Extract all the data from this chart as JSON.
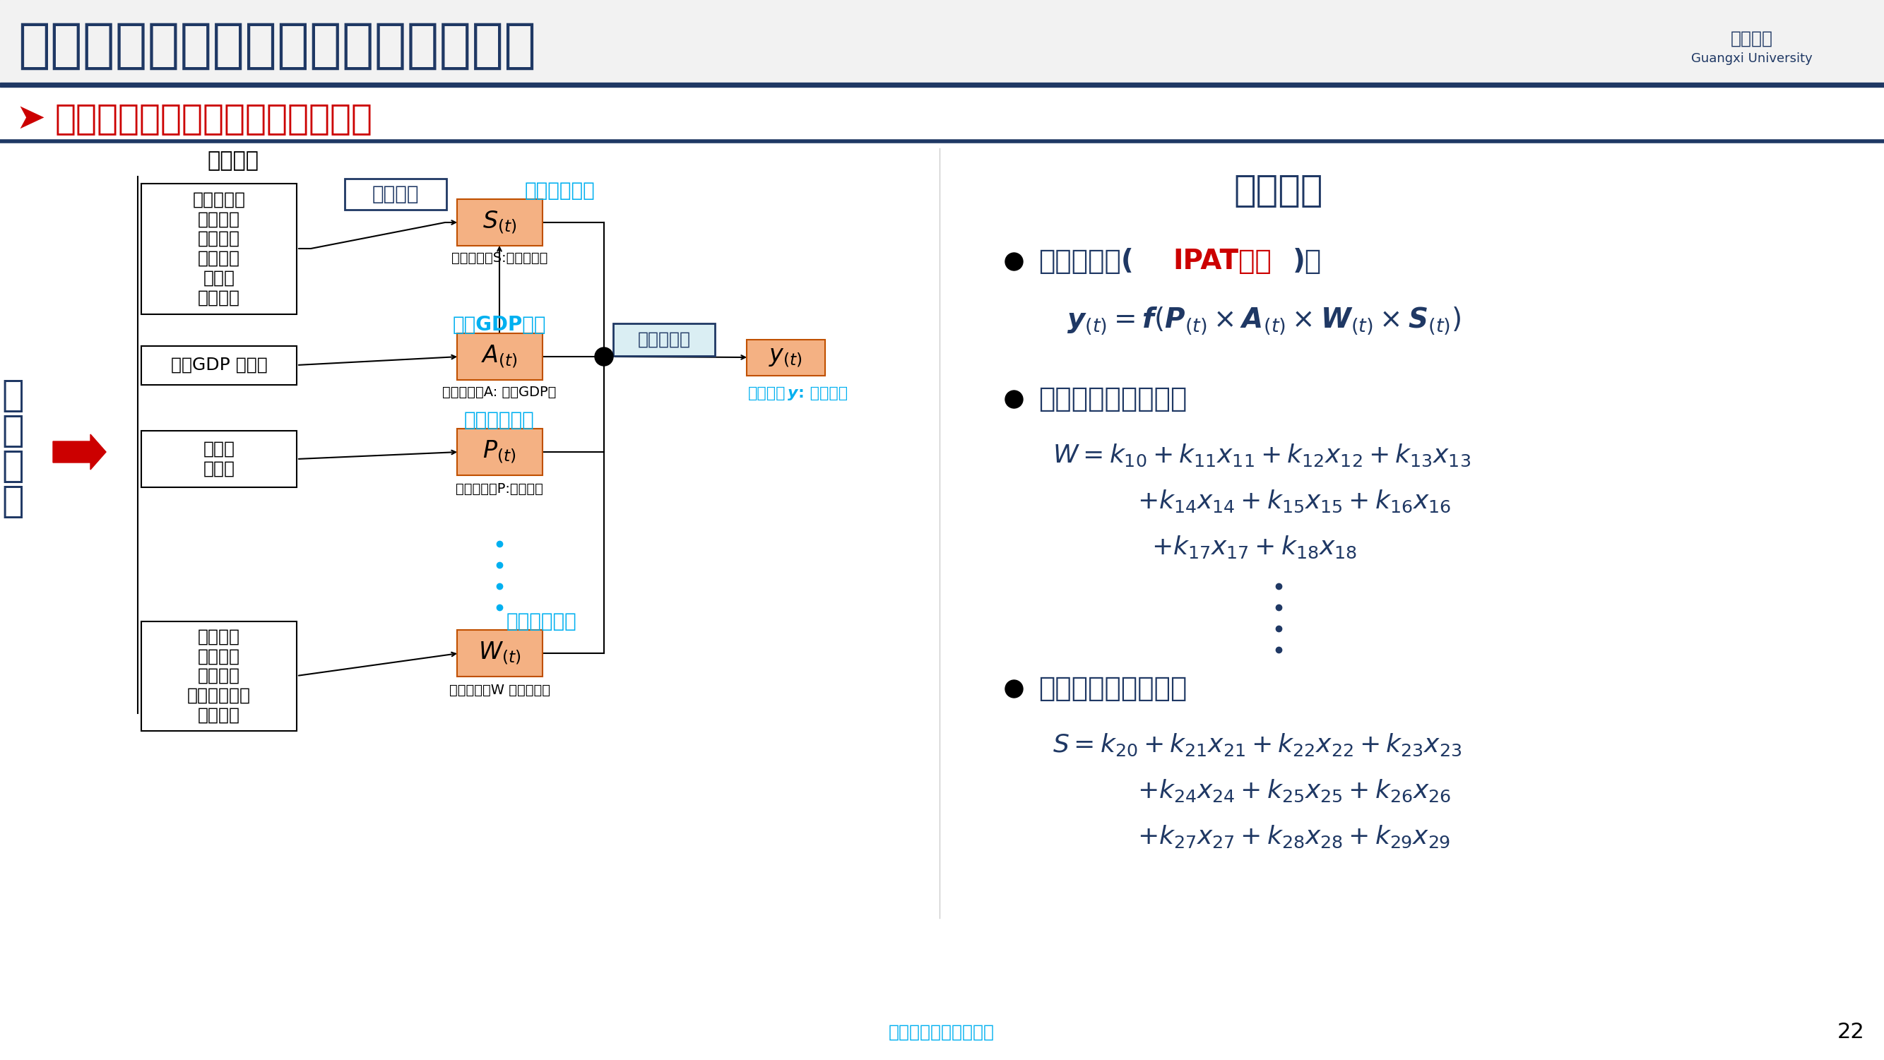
{
  "title": "基于系统动力学的负荷演化预测研究",
  "subtitle": "基于系统动力学的用电量演化方程",
  "bg_color": "#FFFFFF",
  "title_color": "#1F3864",
  "cyan_color": "#00B0F0",
  "orange_box_color": "#F4B183",
  "orange_box_edge": "#C05000",
  "red_color": "#CC0000",
  "black": "#000000",
  "influence_label": "影响因素",
  "block_eq_label": "模块方程",
  "box1_text": "新能源发展\n技术进步\n环保政策\n经济发展\n城镇化\n能源价格",
  "box1_label": "能源结构模块",
  "box1_sub": "（辅助变量S:电能占比）",
  "box2_input": "人均GDP 增长率",
  "box2_label": "人均GDP模块",
  "box2_sub": "（状态变量A: 人均GDP）",
  "box3_text": "出生率\n死亡率",
  "box3_label": "人口数量模块",
  "box3_sub": "（状态变量P:人口数量",
  "box4_text": "技术进步\n环保政策\n产业结构\n一次能源结构\n能源价格",
  "box4_label": "能源强度模块",
  "box4_sub": "（辅助变量W 能源强度）",
  "center_label": "用电量方程",
  "output_sub1": "辅助变量",
  "output_sub2": "y",
  "output_sub3": ": 年用电量",
  "left_vert": "演\n化\n关\n系",
  "eq_title": "演化方程",
  "bullet1_a": "用电量方程(",
  "bullet1_b": "IPAT方程",
  "bullet1_c": ")：",
  "bullet2": "能源强度模块方程：",
  "bullet3": "能源结构模块方程：",
  "footer": "《电工技术学报》发布",
  "page_num": "22"
}
